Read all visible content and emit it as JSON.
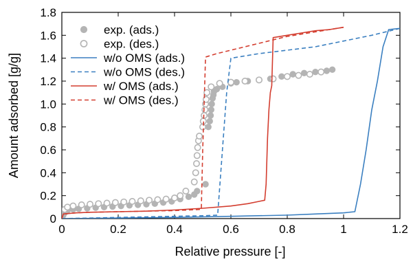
{
  "chart_data": {
    "type": "line",
    "xlabel": "Relative pressure [-]",
    "ylabel": "Amount adsorbed [g/g]",
    "xlim": [
      0,
      1.2
    ],
    "ylim": [
      0,
      1.8
    ],
    "x_ticks": [
      "0",
      "0.2",
      "0.4",
      "0.6",
      "0.8",
      "1",
      "1.2"
    ],
    "y_ticks": [
      "0",
      "0.2",
      "0.4",
      "0.6",
      "0.8",
      "1.0",
      "1.2",
      "1.4",
      "1.6",
      "1.8"
    ],
    "grid": false,
    "legend_position": "top-left",
    "series": [
      {
        "name": "exp. (ads.)",
        "kind": "marker",
        "marker": "filled-circle",
        "color": "#b4b4b4",
        "points": [
          [
            0.005,
            0.03
          ],
          [
            0.01,
            0.05
          ],
          [
            0.02,
            0.07
          ],
          [
            0.04,
            0.08
          ],
          [
            0.06,
            0.085
          ],
          [
            0.09,
            0.09
          ],
          [
            0.12,
            0.095
          ],
          [
            0.15,
            0.1
          ],
          [
            0.18,
            0.105
          ],
          [
            0.21,
            0.11
          ],
          [
            0.24,
            0.115
          ],
          [
            0.27,
            0.12
          ],
          [
            0.3,
            0.125
          ],
          [
            0.33,
            0.13
          ],
          [
            0.36,
            0.14
          ],
          [
            0.39,
            0.15
          ],
          [
            0.42,
            0.17
          ],
          [
            0.45,
            0.19
          ],
          [
            0.47,
            0.21
          ],
          [
            0.48,
            0.24
          ],
          [
            0.51,
            0.3
          ],
          [
            0.52,
            0.8
          ],
          [
            0.525,
            0.85
          ],
          [
            0.528,
            0.9
          ],
          [
            0.53,
            0.95
          ],
          [
            0.532,
            1.0
          ],
          [
            0.535,
            1.05
          ],
          [
            0.538,
            1.08
          ],
          [
            0.54,
            1.11
          ],
          [
            0.55,
            1.13
          ],
          [
            0.57,
            1.15
          ],
          [
            0.6,
            1.18
          ],
          [
            0.62,
            1.19
          ],
          [
            0.66,
            1.2
          ],
          [
            0.7,
            1.21
          ],
          [
            0.74,
            1.22
          ],
          [
            0.78,
            1.24
          ],
          [
            0.82,
            1.26
          ],
          [
            0.86,
            1.27
          ],
          [
            0.9,
            1.28
          ],
          [
            0.94,
            1.29
          ],
          [
            0.96,
            1.3
          ]
        ]
      },
      {
        "name": "exp. (des.)",
        "kind": "marker",
        "marker": "open-circle",
        "color": "#b4b4b4",
        "points": [
          [
            0.01,
            0.08
          ],
          [
            0.02,
            0.1
          ],
          [
            0.04,
            0.11
          ],
          [
            0.07,
            0.12
          ],
          [
            0.1,
            0.125
          ],
          [
            0.13,
            0.13
          ],
          [
            0.16,
            0.135
          ],
          [
            0.19,
            0.14
          ],
          [
            0.22,
            0.145
          ],
          [
            0.25,
            0.15
          ],
          [
            0.28,
            0.155
          ],
          [
            0.31,
            0.16
          ],
          [
            0.34,
            0.165
          ],
          [
            0.37,
            0.17
          ],
          [
            0.4,
            0.18
          ],
          [
            0.42,
            0.2
          ],
          [
            0.44,
            0.24
          ],
          [
            0.47,
            0.32
          ],
          [
            0.475,
            0.4
          ],
          [
            0.478,
            0.48
          ],
          [
            0.48,
            0.55
          ],
          [
            0.482,
            0.62
          ],
          [
            0.485,
            0.68
          ],
          [
            0.488,
            0.72
          ],
          [
            0.5,
            0.8
          ],
          [
            0.502,
            0.85
          ],
          [
            0.505,
            0.9
          ],
          [
            0.508,
            0.95
          ],
          [
            0.51,
            1.0
          ],
          [
            0.512,
            1.04
          ],
          [
            0.515,
            1.1
          ],
          [
            0.53,
            1.15
          ],
          [
            0.56,
            1.18
          ],
          [
            0.6,
            1.19
          ],
          [
            0.65,
            1.2
          ],
          [
            0.7,
            1.21
          ],
          [
            0.75,
            1.22
          ],
          [
            0.8,
            1.24
          ],
          [
            0.84,
            1.25
          ],
          [
            0.88,
            1.26
          ],
          [
            0.92,
            1.28
          ]
        ]
      },
      {
        "name": "w/o OMS (ads.)",
        "kind": "line",
        "dash": "solid",
        "color": "#3a7fc0",
        "points": [
          [
            0.0,
            0.0
          ],
          [
            0.2,
            0.005
          ],
          [
            0.4,
            0.01
          ],
          [
            0.6,
            0.02
          ],
          [
            0.8,
            0.03
          ],
          [
            0.9,
            0.04
          ],
          [
            1.0,
            0.05
          ],
          [
            1.04,
            0.06
          ],
          [
            1.06,
            0.3
          ],
          [
            1.08,
            0.6
          ],
          [
            1.1,
            0.95
          ],
          [
            1.12,
            1.2
          ],
          [
            1.14,
            1.5
          ],
          [
            1.16,
            1.65
          ],
          [
            1.2,
            1.66
          ]
        ]
      },
      {
        "name": "w/o OMS (des.)",
        "kind": "line",
        "dash": "dashed",
        "color": "#3a7fc0",
        "points": [
          [
            0.0,
            0.0
          ],
          [
            0.1,
            0.005
          ],
          [
            0.2,
            0.01
          ],
          [
            0.3,
            0.015
          ],
          [
            0.4,
            0.02
          ],
          [
            0.5,
            0.025
          ],
          [
            0.553,
            0.03
          ],
          [
            0.57,
            0.6
          ],
          [
            0.585,
            1.1
          ],
          [
            0.6,
            1.4
          ],
          [
            0.65,
            1.42
          ],
          [
            0.7,
            1.44
          ],
          [
            0.8,
            1.47
          ],
          [
            0.9,
            1.5
          ],
          [
            1.0,
            1.55
          ],
          [
            1.1,
            1.6
          ],
          [
            1.2,
            1.66
          ]
        ]
      },
      {
        "name": "w/ OMS (ads.)",
        "kind": "line",
        "dash": "solid",
        "color": "#d33d2f",
        "points": [
          [
            0.0,
            0.0
          ],
          [
            0.005,
            0.04
          ],
          [
            0.05,
            0.05
          ],
          [
            0.1,
            0.055
          ],
          [
            0.2,
            0.06
          ],
          [
            0.3,
            0.065
          ],
          [
            0.4,
            0.075
          ],
          [
            0.5,
            0.09
          ],
          [
            0.6,
            0.11
          ],
          [
            0.66,
            0.13
          ],
          [
            0.7,
            0.15
          ],
          [
            0.72,
            0.16
          ],
          [
            0.725,
            0.3
          ],
          [
            0.73,
            0.7
          ],
          [
            0.735,
            0.95
          ],
          [
            0.74,
            1.1
          ],
          [
            0.745,
            1.16
          ],
          [
            0.75,
            1.58
          ],
          [
            0.8,
            1.6
          ],
          [
            0.85,
            1.62
          ],
          [
            0.9,
            1.64
          ],
          [
            0.95,
            1.65
          ],
          [
            1.0,
            1.67
          ]
        ]
      },
      {
        "name": "w/ OMS (des.)",
        "kind": "line",
        "dash": "dashed",
        "color": "#d33d2f",
        "points": [
          [
            0.0,
            0.0
          ],
          [
            0.005,
            0.04
          ],
          [
            0.05,
            0.05
          ],
          [
            0.1,
            0.055
          ],
          [
            0.2,
            0.06
          ],
          [
            0.3,
            0.065
          ],
          [
            0.4,
            0.07
          ],
          [
            0.45,
            0.075
          ],
          [
            0.495,
            0.08
          ],
          [
            0.5,
            0.6
          ],
          [
            0.505,
            1.0
          ],
          [
            0.51,
            1.41
          ],
          [
            0.55,
            1.44
          ],
          [
            0.6,
            1.47
          ],
          [
            0.7,
            1.53
          ],
          [
            0.8,
            1.59
          ],
          [
            0.9,
            1.63
          ],
          [
            1.0,
            1.67
          ]
        ]
      }
    ]
  }
}
